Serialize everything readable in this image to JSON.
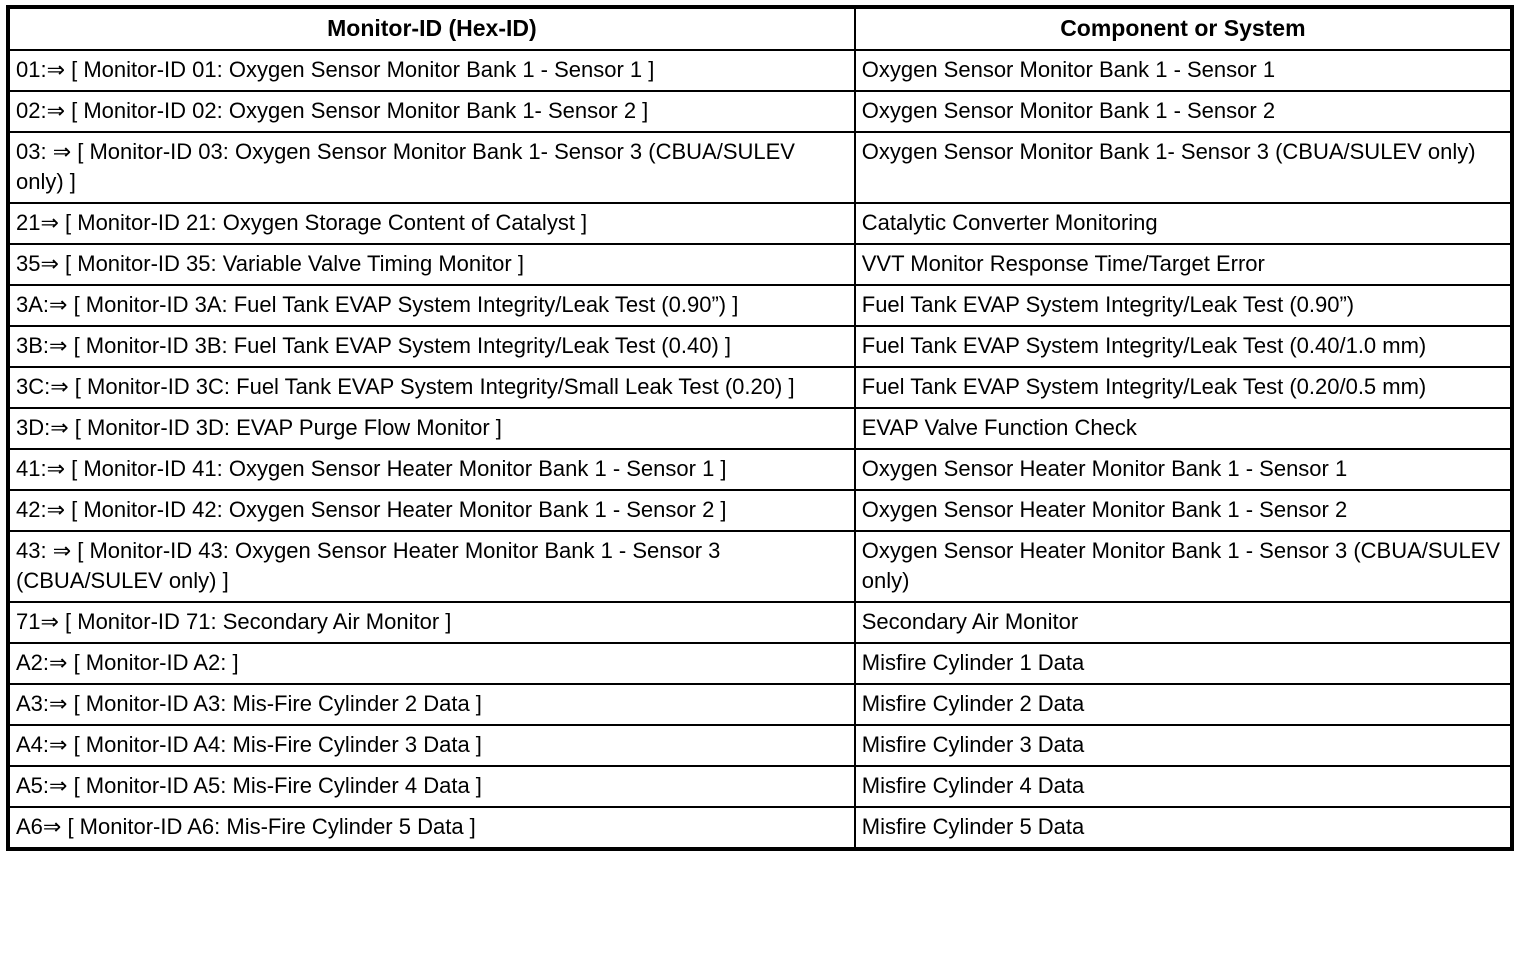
{
  "table": {
    "headers": {
      "monitor_id": "Monitor-ID (Hex-ID)",
      "component": "Component or System"
    },
    "rows": [
      {
        "monitor_id": "01:⇒ [ Monitor-ID 01: Oxygen Sensor Monitor Bank 1 - Sensor 1 ]",
        "component": "Oxygen Sensor Monitor Bank 1 - Sensor 1"
      },
      {
        "monitor_id": "02:⇒ [ Monitor-ID 02: Oxygen Sensor Monitor Bank 1- Sensor 2 ]",
        "component": "Oxygen Sensor Monitor Bank 1 - Sensor 2"
      },
      {
        "monitor_id": "03: ⇒ [ Monitor-ID 03: Oxygen Sensor Monitor Bank 1- Sensor 3 (CBUA/SULEV only) ]",
        "component": "Oxygen Sensor Monitor Bank 1- Sensor 3 (CBUA/SULEV only)"
      },
      {
        "monitor_id": "21⇒ [ Monitor-ID 21: Oxygen Storage Content of Catalyst ]",
        "component": "Catalytic Converter Monitoring"
      },
      {
        "monitor_id": "35⇒ [ Monitor-ID 35: Variable Valve Timing Monitor ]",
        "component": "VVT Monitor Response Time/Target Error"
      },
      {
        "monitor_id": "3A:⇒ [ Monitor-ID 3A: Fuel Tank EVAP System Integrity/Leak Test (0.90”) ]",
        "component": "Fuel Tank EVAP System Integrity/Leak Test (0.90”)"
      },
      {
        "monitor_id": "3B:⇒ [ Monitor-ID 3B: Fuel Tank EVAP System Integrity/Leak Test (0.40) ]",
        "component": "Fuel Tank EVAP System Integrity/Leak Test (0.40/1.0 mm)"
      },
      {
        "monitor_id": "3C:⇒ [ Monitor-ID 3C: Fuel Tank EVAP System Integrity/Small Leak Test (0.20) ]",
        "component": "Fuel Tank EVAP System Integrity/Leak Test (0.20/0.5 mm)"
      },
      {
        "monitor_id": "3D:⇒ [ Monitor-ID 3D: EVAP Purge Flow Monitor ]",
        "component": "EVAP Valve Function Check"
      },
      {
        "monitor_id": "41:⇒ [ Monitor-ID 41: Oxygen Sensor Heater Monitor Bank 1 - Sensor 1 ]",
        "component": "Oxygen Sensor Heater Monitor Bank 1 - Sensor 1"
      },
      {
        "monitor_id": "42:⇒ [ Monitor-ID 42: Oxygen Sensor Heater Monitor Bank 1 - Sensor 2 ]",
        "component": "Oxygen Sensor Heater Monitor Bank 1 - Sensor 2"
      },
      {
        "monitor_id": "43: ⇒ [ Monitor-ID 43: Oxygen Sensor Heater Monitor Bank 1 - Sensor 3 (CBUA/SULEV only) ]",
        "component": "Oxygen Sensor Heater Monitor Bank 1 - Sensor 3 (CBUA/SULEV only)"
      },
      {
        "monitor_id": "71⇒ [ Monitor-ID 71: Secondary Air Monitor ]",
        "component": "Secondary Air Monitor"
      },
      {
        "monitor_id": "A2:⇒ [ Monitor-ID A2: ]",
        "component": "Misfire Cylinder 1 Data"
      },
      {
        "monitor_id": "A3:⇒ [ Monitor-ID A3: Mis-Fire Cylinder 2 Data ]",
        "component": "Misfire Cylinder 2 Data"
      },
      {
        "monitor_id": "A4:⇒ [ Monitor-ID A4: Mis-Fire Cylinder 3 Data ]",
        "component": "Misfire Cylinder 3 Data"
      },
      {
        "monitor_id": "A5:⇒ [ Monitor-ID A5: Mis-Fire Cylinder 4 Data ]",
        "component": "Misfire Cylinder 4 Data"
      },
      {
        "monitor_id": "A6⇒ [ Monitor-ID A6: Mis-Fire Cylinder 5 Data ]",
        "component": "Misfire Cylinder 5 Data"
      }
    ]
  }
}
